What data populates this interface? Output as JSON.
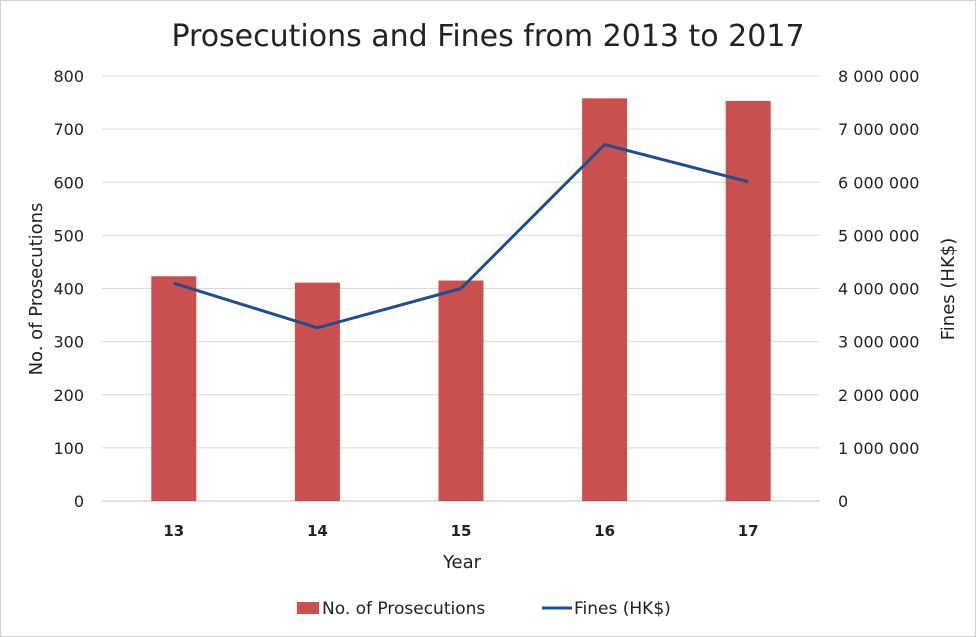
{
  "chart_data": {
    "type": "bar+line",
    "title": "Prosecutions and Fines from 2013 to 2017",
    "xlabel": "Year",
    "ylabel": "No. of Prosecutions",
    "y2label": "Fines (HK$)",
    "categories": [
      "13",
      "14",
      "15",
      "16",
      "17"
    ],
    "ylim": [
      0,
      800
    ],
    "yticks": [
      "0",
      "100",
      "200",
      "300",
      "400",
      "500",
      "600",
      "700",
      "800"
    ],
    "y2lim": [
      0,
      8000000
    ],
    "y2ticks": [
      "0",
      "1 000 000",
      "2 000 000",
      "3 000 000",
      "4 000 000",
      "5 000 000",
      "6 000 000",
      "7 000 000",
      "8 000 000"
    ],
    "grid": true,
    "legend_position": "bottom",
    "series": [
      {
        "name": "No. of Prosecutions",
        "type": "bar",
        "axis": "left",
        "color": "#c9504f",
        "values": [
          423,
          411,
          415,
          758,
          753
        ]
      },
      {
        "name": "Fines (HK$)",
        "type": "line",
        "axis": "right",
        "color": "#1f4e8c",
        "values": [
          4100000,
          3260000,
          4000000,
          6710000,
          6010000
        ]
      }
    ]
  }
}
